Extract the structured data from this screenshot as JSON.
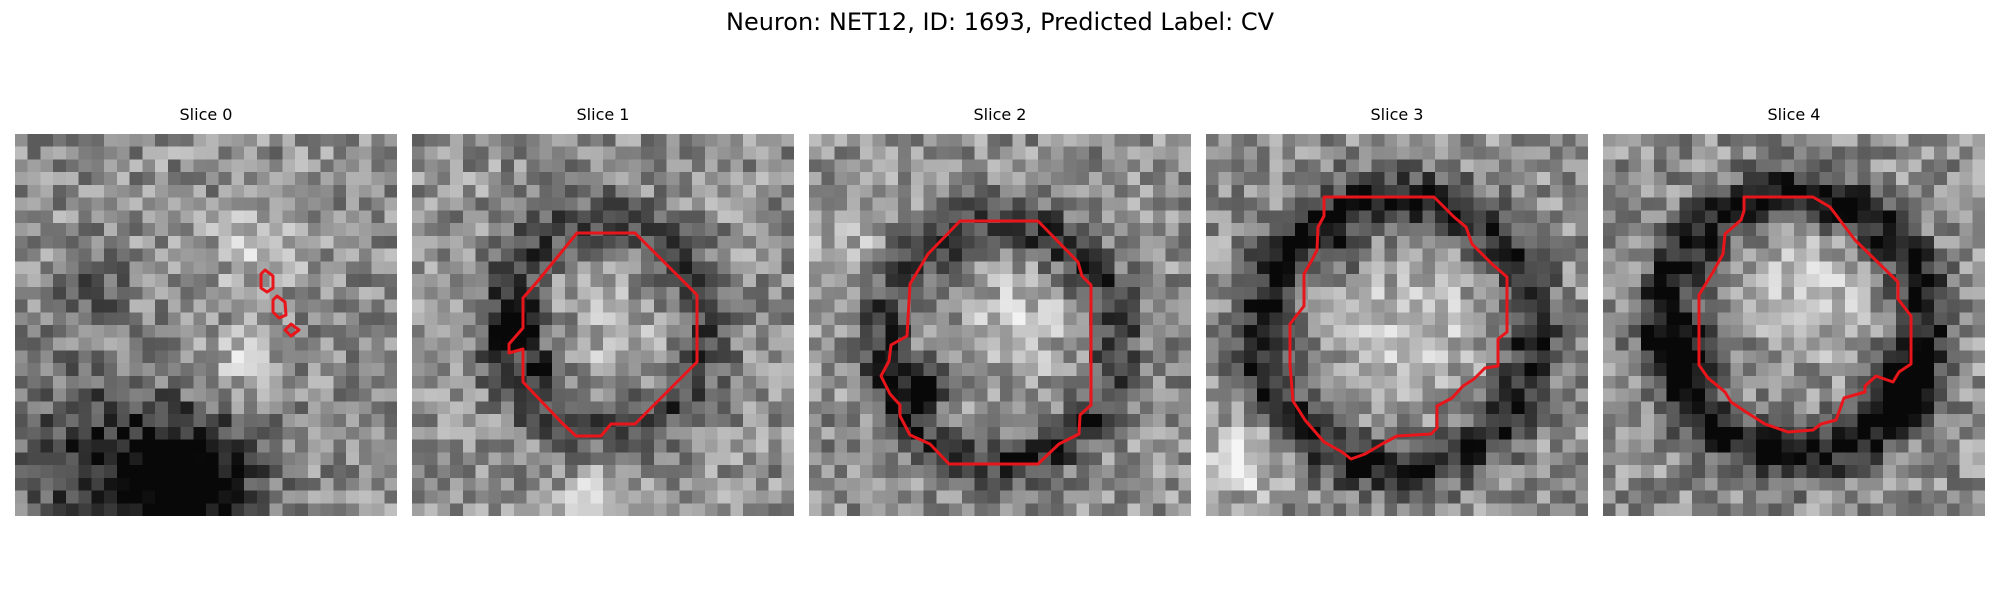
{
  "figure": {
    "title": "Neuron: NET12, ID: 1693, Predicted Label: CV"
  },
  "contour_color": "#e8151b",
  "slices": [
    {
      "title": "Slice 0"
    },
    {
      "title": "Slice 1"
    },
    {
      "title": "Slice 2"
    },
    {
      "title": "Slice 3"
    },
    {
      "title": "Slice 4"
    }
  ]
}
